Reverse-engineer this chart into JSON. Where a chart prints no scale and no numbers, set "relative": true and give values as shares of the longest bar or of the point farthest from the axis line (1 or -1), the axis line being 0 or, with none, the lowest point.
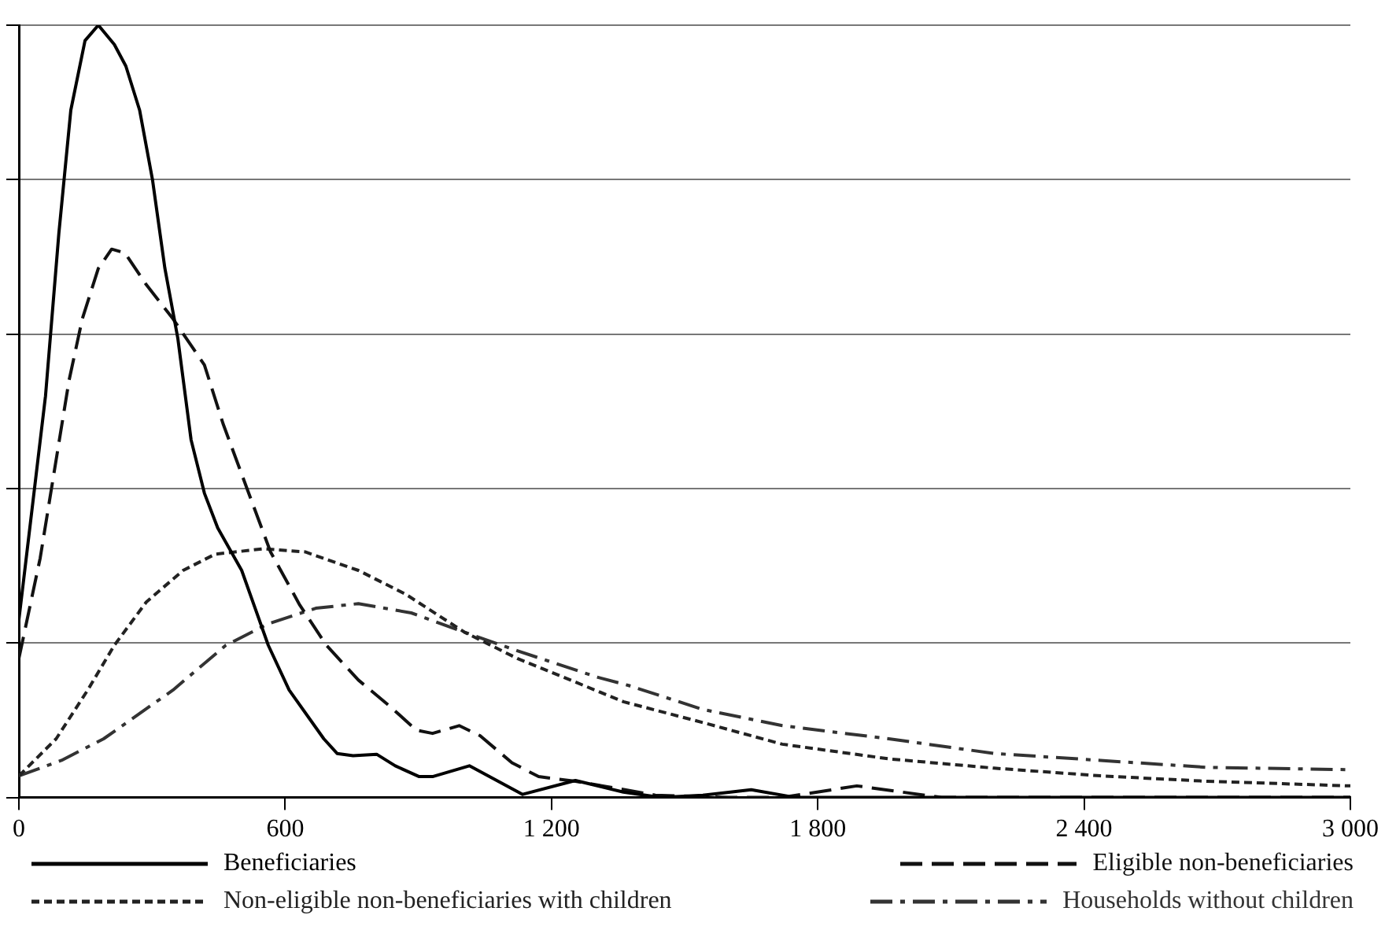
{
  "chart_data": {
    "type": "line",
    "relative": true,
    "xlim": [
      0,
      3000
    ],
    "xticks": [
      0,
      600,
      {
        "value": 1200,
        "label": "1 200"
      },
      {
        "value": 1800,
        "label": "1 800"
      },
      {
        "value": 2400,
        "label": "2 400"
      },
      {
        "value": 3000,
        "label": "3 000"
      }
    ],
    "grid": "y",
    "legend": "bottom",
    "tick_labels": "x",
    "marker": "none",
    "series": [
      {
        "name": "Beneficiaries",
        "color": "#000000",
        "line_style": "solid",
        "x": [
          0,
          60,
          90,
          117,
          149,
          179,
          215,
          241,
          272,
          301,
          329,
          358,
          388,
          418,
          448,
          502,
          562,
          609,
          687,
          717,
          753,
          806,
          848,
          902,
          932,
          1015,
          1135,
          1254,
          1362,
          1446,
          1541,
          1650,
          1750,
          2000,
          2500,
          3000
        ],
        "values": [
          0.23,
          0.52,
          0.73,
          0.89,
          0.98,
          1,
          0.975,
          0.947,
          0.89,
          0.8,
          0.685,
          0.595,
          0.463,
          0.394,
          0.349,
          0.294,
          0.197,
          0.139,
          0.076,
          0.057,
          0.054,
          0.056,
          0.041,
          0.027,
          0.027,
          0.041,
          0.004,
          0.022,
          0.007,
          0,
          0.003,
          0.01,
          0,
          0,
          0,
          0
        ]
      },
      {
        "name": "Eligible non-beneficiaries",
        "color": "#111111",
        "line_style": "dashed",
        "x": [
          0,
          48,
          113,
          143,
          179,
          209,
          239,
          287,
          347,
          418,
          460,
          514,
          567,
          633,
          693,
          765,
          836,
          896,
          932,
          992,
          1039,
          1111,
          1171,
          1254,
          1326,
          1434,
          1600,
          1720,
          1888,
          2079,
          2500,
          3000
        ],
        "values": [
          0.18,
          0.31,
          0.54,
          0.62,
          0.685,
          0.71,
          0.705,
          0.664,
          0.62,
          0.56,
          0.484,
          0.4,
          0.318,
          0.249,
          0.197,
          0.152,
          0.118,
          0.087,
          0.083,
          0.093,
          0.08,
          0.045,
          0.027,
          0.021,
          0.014,
          0.003,
          0,
          0,
          0.015,
          0,
          0,
          0
        ]
      },
      {
        "name": "Non-eligible non-beneficiaries with children",
        "color": "#222222",
        "line_style": "dotted",
        "x": [
          0,
          84,
          155,
          215,
          287,
          370,
          442,
          550,
          645,
          765,
          872,
          1004,
          1123,
          1243,
          1362,
          1541,
          1720,
          1960,
          2197,
          2437,
          2677,
          3000
        ],
        "values": [
          0.028,
          0.076,
          0.139,
          0.197,
          0.253,
          0.294,
          0.315,
          0.322,
          0.318,
          0.294,
          0.263,
          0.214,
          0.18,
          0.152,
          0.124,
          0.097,
          0.069,
          0.05,
          0.038,
          0.028,
          0.021,
          0.015
        ]
      },
      {
        "name": "Households without children",
        "color": "#333333",
        "line_style": "dashdot",
        "x": [
          0,
          96,
          191,
          347,
          466,
          562,
          669,
          765,
          884,
          1004,
          1123,
          1302,
          1374,
          1541,
          1720,
          1960,
          2197,
          2437,
          2677,
          3000
        ],
        "values": [
          0.028,
          0.048,
          0.076,
          0.139,
          0.197,
          0.225,
          0.245,
          0.251,
          0.239,
          0.214,
          0.19,
          0.156,
          0.145,
          0.114,
          0.093,
          0.076,
          0.057,
          0.048,
          0.039,
          0.036
        ]
      }
    ]
  }
}
